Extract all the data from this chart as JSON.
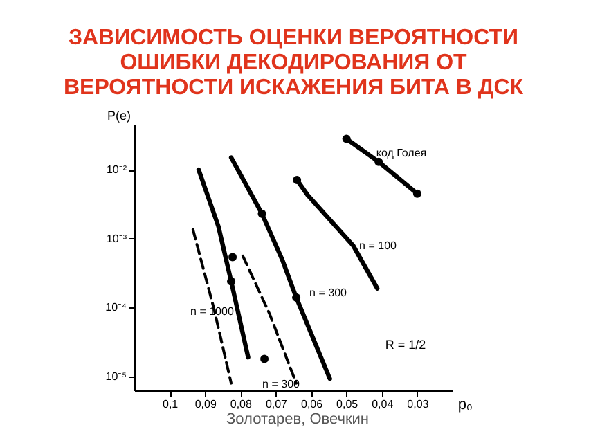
{
  "chart_data": {
    "type": "line",
    "title": "ЗАВИСИМОСТЬ ОЦЕНКИ ВЕРОЯТНОСТИ\nОШИБКИ ДЕКОДИРОВАНИЯ ОТ\nВЕРОЯТНОСТИ ИСКАЖЕНИЯ БИТА В ДСК",
    "xlabel": "p₀",
    "ylabel": "P(e)",
    "log": "y",
    "grid": false,
    "marker": "none",
    "xlim": [
      0.11,
      0.02
    ],
    "ylim": [
      6.3e-06,
      0.045
    ],
    "xticks": [
      {
        "value": 0.1,
        "label": "0,1"
      },
      {
        "value": 0.09,
        "label": "0,09"
      },
      {
        "value": 0.08,
        "label": "0,08"
      },
      {
        "value": 0.07,
        "label": "0,07"
      },
      {
        "value": 0.06,
        "label": "0,06"
      },
      {
        "value": 0.05,
        "label": "0,05"
      },
      {
        "value": 0.04,
        "label": "0,04"
      },
      {
        "value": 0.03,
        "label": "0,03"
      }
    ],
    "yticks": [
      {
        "value": 0.01,
        "label": "10⁻²"
      },
      {
        "value": 0.001,
        "label": "10⁻³"
      },
      {
        "value": 0.0001,
        "label": "10⁻⁴"
      },
      {
        "value": 1e-05,
        "label": "10⁻⁵"
      }
    ],
    "series": [
      {
        "color": "#000000",
        "line_style": "solid",
        "x": [
          0.0918,
          0.0862,
          0.0826,
          0.0778
        ],
        "values": [
          0.01,
          0.0015,
          0.00024,
          1.9e-05
        ]
      },
      {
        "color": "#000000",
        "line_style": "solid",
        "x": [
          0.0826,
          0.0739,
          0.0682,
          0.0642,
          0.0547
        ],
        "values": [
          0.015,
          0.0023,
          0.0005,
          0.00014,
          9.3e-06
        ]
      },
      {
        "color": "#000000",
        "line_style": "solid",
        "x": [
          0.064,
          0.061,
          0.0481,
          0.0413
        ],
        "values": [
          0.0071,
          0.0043,
          0.00079,
          0.00019
        ]
      },
      {
        "color": "#000000",
        "line_style": "solid",
        "x": [
          0.05,
          0.0409,
          0.03
        ],
        "values": [
          0.028,
          0.013,
          0.0045
        ]
      },
      {
        "color": "#000000",
        "line_style": "dashed",
        "x": [
          0.0934,
          0.0874,
          0.0826
        ],
        "values": [
          0.00135,
          9.3e-05,
          8e-06
        ]
      },
      {
        "color": "#000000",
        "line_style": "dashed",
        "x": [
          0.0793,
          0.0717,
          0.0642
        ],
        "values": [
          0.00056,
          8e-05,
          8e-06
        ]
      },
      {
        "type": "scatter",
        "marker": "circle",
        "color": "#000000",
        "x": [
          0.0826,
          0.0739,
          0.0642,
          0.064,
          0.05,
          0.0409,
          0.03,
          0.0822,
          0.0732
        ],
        "values": [
          0.00024,
          0.0023,
          0.00014,
          0.0071,
          0.028,
          0.013,
          0.0045,
          0.00054,
          1.8e-05
        ]
      }
    ],
    "annotations": [
      {
        "text": "n = 1000",
        "x": 0.088,
        "y": 8.5e-05
      },
      "n = 300",
      "n = 100",
      "код Голея",
      "n = 300",
      "R = 1/2",
      "Золотарев, Овечкин"
    ]
  }
}
